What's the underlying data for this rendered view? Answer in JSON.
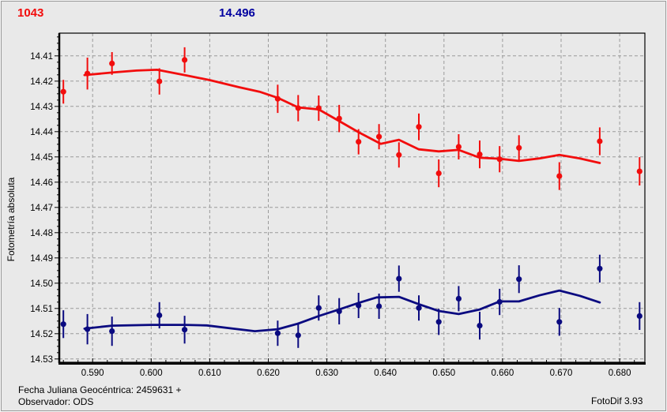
{
  "header": {
    "object_number": "1043",
    "magnitude_value": "14.496"
  },
  "footer": {
    "julian_date_line": "Fecha Juliana Geocéntrica: 2459631 +",
    "observer_line": "Observador: ODS",
    "app_version": "FotoDif 3.93"
  },
  "colors": {
    "background": "#e9e9e9",
    "title_red": "#f20d0d",
    "title_blue": "#0000a0",
    "series_red": "#f20d0d",
    "series_blue": "#0a0a80",
    "grid": "#9a9a9a",
    "axis": "#000000"
  },
  "chart_data": {
    "type": "scatter",
    "title": "",
    "xlabel": "",
    "ylabel": "Fotometría absoluta",
    "y_axis_note": "absolute photometry magnitude, increases downward",
    "grid": "dashed",
    "legend": "none",
    "xlim": [
      0.5843,
      0.6843
    ],
    "ylim": [
      14.401,
      14.5313
    ],
    "x_major_ticks": [
      0.59,
      0.6,
      0.61,
      0.62,
      0.63,
      0.64,
      0.65,
      0.66,
      0.67,
      0.68
    ],
    "y_major_ticks": [
      14.41,
      14.42,
      14.43,
      14.44,
      14.45,
      14.46,
      14.47,
      14.48,
      14.49,
      14.5,
      14.51,
      14.52,
      14.53
    ],
    "x_minor_step": 0.0025,
    "y_minor_step": 0.0025,
    "series": [
      {
        "name": "lightcurve-red",
        "color": "#f20d0d",
        "marker": "circle",
        "x": [
          0.585,
          0.5891,
          0.5933,
          0.6014,
          0.6057,
          0.6216,
          0.6251,
          0.6286,
          0.6321,
          0.6354,
          0.6389,
          0.6423,
          0.6457,
          0.6491,
          0.6525,
          0.6561,
          0.6595,
          0.6628,
          0.6697,
          0.6766,
          0.6834
        ],
        "mag": [
          14.4242,
          14.417,
          14.413,
          14.4201,
          14.4116,
          14.427,
          14.4307,
          14.4307,
          14.4348,
          14.444,
          14.442,
          14.4492,
          14.4381,
          14.4565,
          14.446,
          14.449,
          14.4509,
          14.4464,
          14.4576,
          14.4438,
          14.4557
        ],
        "err": [
          0.0047,
          0.0063,
          0.0045,
          0.0052,
          0.005,
          0.0056,
          0.0052,
          0.005,
          0.0054,
          0.005,
          0.005,
          0.005,
          0.0053,
          0.0055,
          0.005,
          0.0055,
          0.0052,
          0.005,
          0.0055,
          0.0055,
          0.0056
        ],
        "fit_line": [
          [
            0.5886,
            14.4176
          ],
          [
            0.5933,
            14.4166
          ],
          [
            0.5975,
            14.4158
          ],
          [
            0.601,
            14.4155
          ],
          [
            0.6057,
            14.4176
          ],
          [
            0.61,
            14.4196
          ],
          [
            0.615,
            14.4224
          ],
          [
            0.6185,
            14.4242
          ],
          [
            0.6216,
            14.4266
          ],
          [
            0.6251,
            14.4304
          ],
          [
            0.6286,
            14.4312
          ],
          [
            0.6321,
            14.4358
          ],
          [
            0.6354,
            14.4402
          ],
          [
            0.6392,
            14.4448
          ],
          [
            0.6423,
            14.4432
          ],
          [
            0.6457,
            14.447
          ],
          [
            0.6491,
            14.4478
          ],
          [
            0.6525,
            14.4472
          ],
          [
            0.6561,
            14.4503
          ],
          [
            0.6595,
            14.4507
          ],
          [
            0.6628,
            14.4516
          ],
          [
            0.6663,
            14.4506
          ],
          [
            0.6697,
            14.4492
          ],
          [
            0.6732,
            14.4506
          ],
          [
            0.6766,
            14.4524
          ]
        ]
      },
      {
        "name": "lightcurve-blue",
        "color": "#0a0a80",
        "marker": "circle",
        "x": [
          0.585,
          0.5891,
          0.5933,
          0.6014,
          0.6057,
          0.6216,
          0.6251,
          0.6286,
          0.6321,
          0.6354,
          0.6389,
          0.6423,
          0.6457,
          0.6491,
          0.6525,
          0.6561,
          0.6595,
          0.6628,
          0.6697,
          0.6766,
          0.6834
        ],
        "mag": [
          14.5162,
          14.5182,
          14.519,
          14.5127,
          14.5184,
          14.5198,
          14.5206,
          14.5098,
          14.5111,
          14.5088,
          14.5091,
          14.4982,
          14.5098,
          14.5153,
          14.5061,
          14.5168,
          14.5074,
          14.4984,
          14.5153,
          14.4942,
          14.513
        ],
        "err": [
          0.0055,
          0.006,
          0.0058,
          0.0052,
          0.0055,
          0.005,
          0.005,
          0.005,
          0.0052,
          0.005,
          0.005,
          0.0052,
          0.005,
          0.0052,
          0.005,
          0.0055,
          0.0052,
          0.0055,
          0.0055,
          0.0055,
          0.0055
        ],
        "fit_line": [
          [
            0.5886,
            14.518
          ],
          [
            0.5933,
            14.5168
          ],
          [
            0.6,
            14.5165
          ],
          [
            0.6057,
            14.5165
          ],
          [
            0.6095,
            14.5167
          ],
          [
            0.614,
            14.518
          ],
          [
            0.6177,
            14.519
          ],
          [
            0.6216,
            14.5182
          ],
          [
            0.6251,
            14.516
          ],
          [
            0.6286,
            14.513
          ],
          [
            0.6321,
            14.5104
          ],
          [
            0.6354,
            14.5078
          ],
          [
            0.6385,
            14.5056
          ],
          [
            0.6423,
            14.5054
          ],
          [
            0.6457,
            14.5083
          ],
          [
            0.6491,
            14.511
          ],
          [
            0.6525,
            14.5122
          ],
          [
            0.6561,
            14.5104
          ],
          [
            0.6595,
            14.5072
          ],
          [
            0.6628,
            14.5072
          ],
          [
            0.6663,
            14.5048
          ],
          [
            0.6697,
            14.5029
          ],
          [
            0.6732,
            14.505
          ],
          [
            0.6766,
            14.5076
          ]
        ]
      }
    ]
  }
}
